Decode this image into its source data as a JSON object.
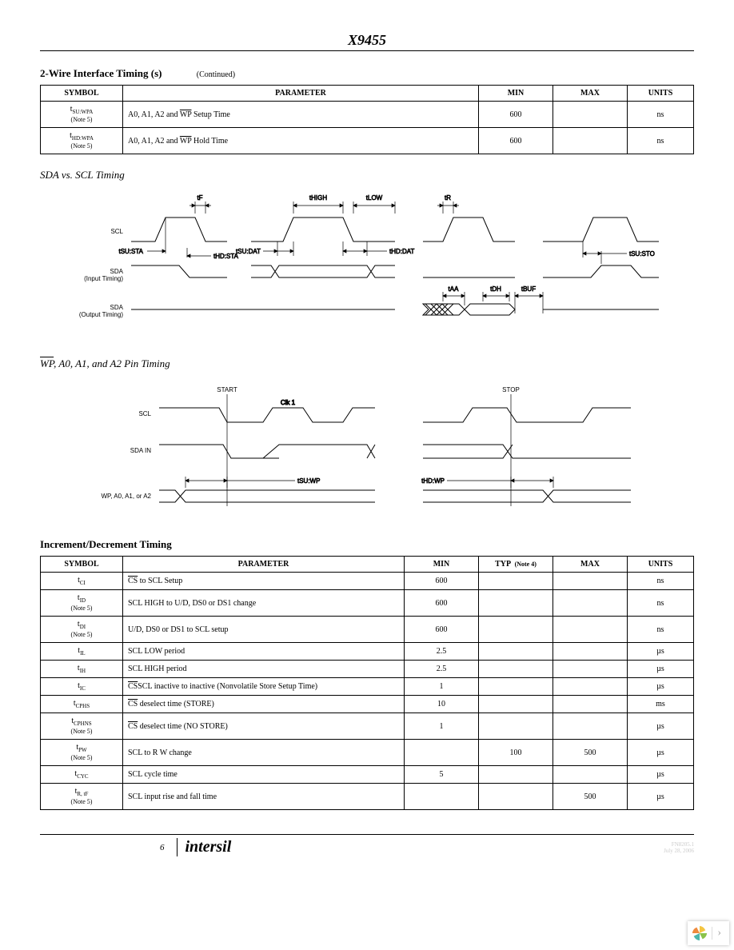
{
  "doc": {
    "title": "X9455",
    "page_number": "6",
    "brand": "intersil",
    "footer_code": "FN8205.1",
    "footer_date": "July 28, 2006"
  },
  "table1": {
    "heading": "2-Wire Interface Timing (s)",
    "continued": "(Continued)",
    "columns": [
      "SYMBOL",
      "PARAMETER",
      "MIN",
      "MAX",
      "UNITS"
    ],
    "rows": [
      {
        "symbol": "t",
        "sub": "SU:WPA",
        "note": "(Note 5)",
        "param_prefix": "A0, A1, A2 and ",
        "param_over": "WP",
        "param_suffix": " Setup Time",
        "min": "600",
        "max": "",
        "units": "ns"
      },
      {
        "symbol": "t",
        "sub": "HD:WPA",
        "note": "(Note 5)",
        "param_prefix": "A0, A1, A2 and ",
        "param_over": "WP",
        "param_suffix": " Hold Time",
        "min": "600",
        "max": "",
        "units": "ns"
      }
    ]
  },
  "diagram1": {
    "heading": "SDA vs. SCL Timing",
    "labels": {
      "scl": "SCL",
      "sda_in": "SDA",
      "sda_in_sub": "(Input Timing)",
      "sda_out": "SDA",
      "sda_out_sub": "(Output Timing)",
      "tf": "tF",
      "thigh": "tHIGH",
      "tlow": "tLOW",
      "tr": "tR",
      "tsusta": "tSU:STA",
      "thdsta": "tHD:STA",
      "tsudat": "tSU:DAT",
      "thddat": "tHD:DAT",
      "taa": "tAA",
      "tdh": "tDH",
      "tbuf": "tBUF",
      "tsusto": "tSU:STO"
    }
  },
  "diagram2": {
    "heading_over": "WP",
    "heading_rest": ", A0, A1, and A2 Pin Timing",
    "labels": {
      "start": "START",
      "stop": "STOP",
      "scl": "SCL",
      "clk1": "Clk 1",
      "sda_in": "SDA IN",
      "wp_line": "WP, A0, A1, or A2",
      "tsuwp": "tSU:WP",
      "thdwp": "tHD:WP"
    }
  },
  "table2": {
    "heading": "Increment/Decrement Timing",
    "typnote": "(Note 4)",
    "columns": [
      "SYMBOL",
      "PARAMETER",
      "MIN",
      "TYP",
      "MAX",
      "UNITS"
    ],
    "rows": [
      {
        "symbol": "t",
        "sub": "CI",
        "note": "",
        "over": "CS",
        "param": " to SCL Setup",
        "min": "600",
        "typ": "",
        "max": "",
        "units": "ns"
      },
      {
        "symbol": "t",
        "sub": "ID",
        "note": "(Note 5)",
        "over": "",
        "param": "SCL HIGH to U/D, DS0 or DS1 change",
        "min": "600",
        "typ": "",
        "max": "",
        "units": "ns"
      },
      {
        "symbol": "t",
        "sub": "DI",
        "note": "(Note 5)",
        "over": "",
        "param": "U/D, DS0 or DS1 to SCL setup",
        "min": "600",
        "typ": "",
        "max": "",
        "units": "ns"
      },
      {
        "symbol": "t",
        "sub": "IL",
        "note": "",
        "over": "",
        "param": "SCL LOW period",
        "min": "2.5",
        "typ": "",
        "max": "",
        "units": "µs"
      },
      {
        "symbol": "t",
        "sub": "IH",
        "note": "",
        "over": "",
        "param": "SCL HIGH period",
        "min": "2.5",
        "typ": "",
        "max": "",
        "units": "µs"
      },
      {
        "symbol": "t",
        "sub": "IC",
        "note": "",
        "over": "CS",
        "param": "SCL inactive to  inactive (Nonvolatile Store Setup Time)",
        "min": "1",
        "typ": "",
        "max": "",
        "units": "µs"
      },
      {
        "symbol": "t",
        "sub": "CPHS",
        "note": "",
        "over": "CS",
        "param": " deselect time (STORE)",
        "min": "10",
        "typ": "",
        "max": "",
        "units": "ms"
      },
      {
        "symbol": "t",
        "sub": "CPHNS",
        "note": "(Note 5)",
        "over": "CS",
        "param": " deselect time (NO STORE)",
        "min": "1",
        "typ": "",
        "max": "",
        "units": "µs"
      },
      {
        "symbol": "t",
        "sub": "PW",
        "note": "(Note 5)",
        "over": "",
        "param": "SCL to R    W change",
        "min": "",
        "typ": "100",
        "max": "500",
        "units": "µs"
      },
      {
        "symbol": "t",
        "sub": "CYC",
        "note": "",
        "over": "",
        "param": "SCL cycle time",
        "min": "5",
        "typ": "",
        "max": "",
        "units": "µs"
      },
      {
        "symbol": "t",
        "sub": "R, tF",
        "note": "(Note 5)",
        "over": "",
        "param": "SCL input rise and fall time",
        "min": "",
        "typ": "",
        "max": "500",
        "units": "µs"
      }
    ]
  }
}
